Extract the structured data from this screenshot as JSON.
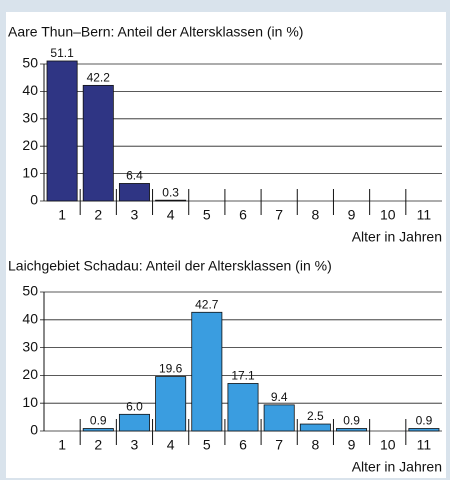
{
  "chart_data": [
    {
      "type": "bar",
      "title": "Aare Thun–Bern: Anteil der Altersklassen (in %)",
      "categories": [
        "1",
        "2",
        "3",
        "4",
        "5",
        "6",
        "7",
        "8",
        "9",
        "10",
        "11"
      ],
      "values": [
        51.1,
        42.2,
        6.4,
        0.3,
        null,
        null,
        null,
        null,
        null,
        null,
        null
      ],
      "value_labels": [
        "51.1",
        "42.2",
        "6.4",
        "0.3",
        null,
        null,
        null,
        null,
        null,
        null,
        null
      ],
      "color": "#2f3584",
      "x_label": "Alter in Jahren",
      "ylim": [
        0,
        50
      ],
      "yticks": [
        0,
        10,
        20,
        30,
        40,
        50
      ],
      "grid": true
    },
    {
      "type": "bar",
      "title": "Laichgebiet Schadau: Anteil der Altersklassen (in %)",
      "categories": [
        "1",
        "2",
        "3",
        "4",
        "5",
        "6",
        "7",
        "8",
        "9",
        "10",
        "11"
      ],
      "values": [
        null,
        0.9,
        6.0,
        19.6,
        42.7,
        17.1,
        9.4,
        2.5,
        0.9,
        null,
        0.9
      ],
      "value_labels": [
        null,
        "0.9",
        "6.0",
        "19.6",
        "42.7",
        "17.1",
        "9.4",
        "2.5",
        "0.9",
        null,
        "0.9"
      ],
      "color": "#3a9de0",
      "x_label": "Alter in Jahren",
      "ylim": [
        0,
        50
      ],
      "yticks": [
        0,
        10,
        20,
        30,
        40,
        50
      ],
      "grid": true
    }
  ]
}
